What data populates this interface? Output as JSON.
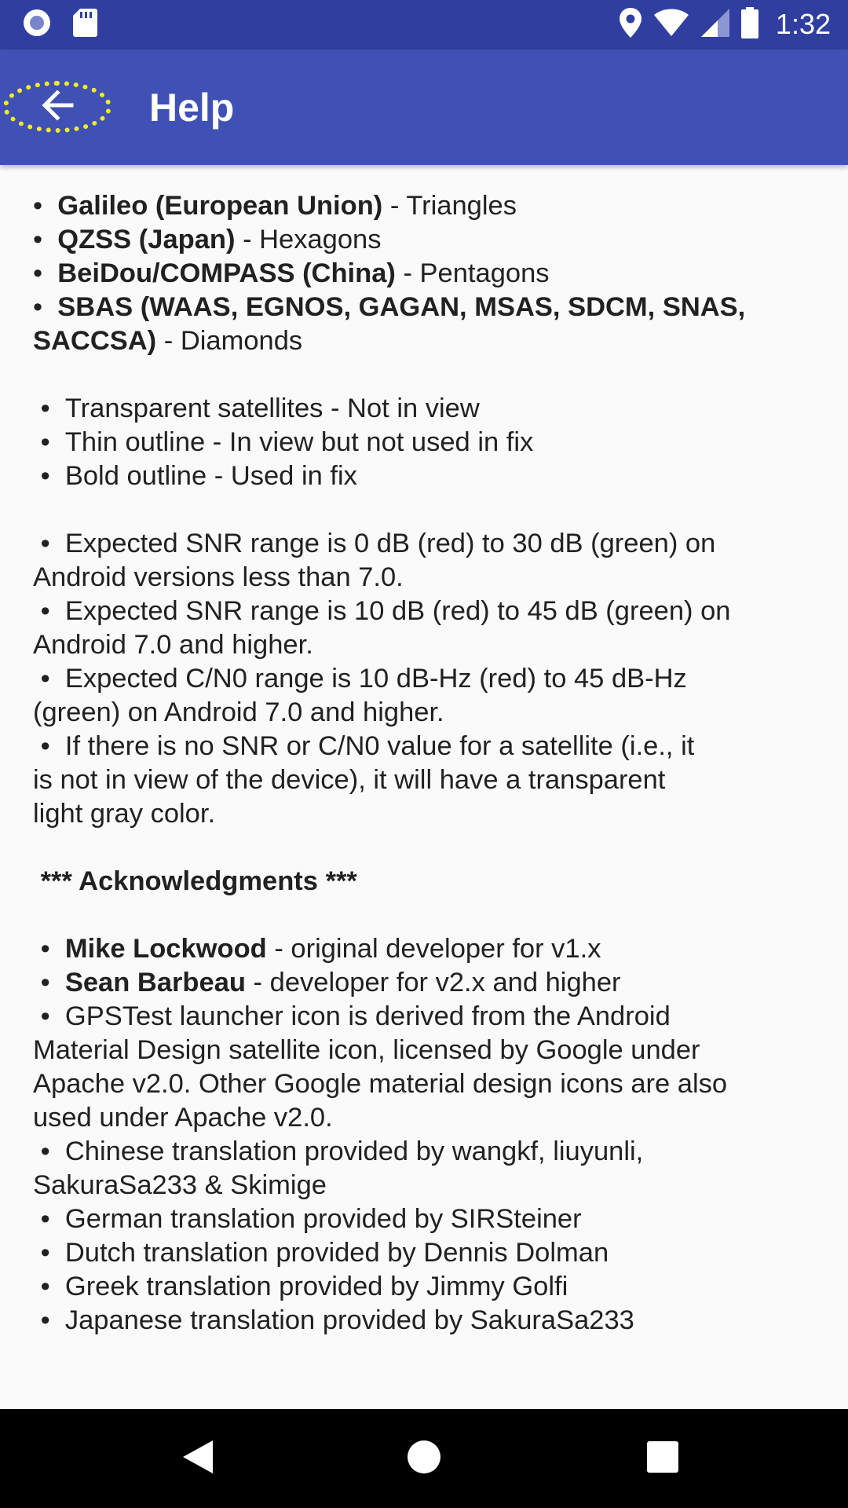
{
  "status_bar": {
    "time": "1:32",
    "left_icons": [
      "record-icon",
      "sd-card-icon"
    ],
    "right_icons": [
      "location-icon",
      "wifi-icon",
      "cell-signal-icon",
      "battery-icon"
    ]
  },
  "app_bar": {
    "title": "Help",
    "back_icon": "arrow-back-icon"
  },
  "bullet": "•",
  "help": {
    "shapes": [
      {
        "name": "Galileo (European Union)",
        "desc": " - Triangles"
      },
      {
        "name": "QZSS (Japan)",
        "desc": " - Hexagons"
      },
      {
        "name": "BeiDou/COMPASS (China)",
        "desc": " - Pentagons"
      }
    ],
    "sbas": {
      "name_line1": "SBAS (WAAS, EGNOS, GAGAN, MSAS, SDCM, SNAS,",
      "name_line2": "SACCSA)",
      "desc": " - Diamonds"
    },
    "outline": [
      "Transparent satellites - Not in view",
      "Thin outline - In view but not used in fix",
      "Bold outline - Used in fix"
    ],
    "signal": [
      {
        "l1": "Expected SNR range is 0 dB (red) to 30 dB (green) on",
        "l2": "Android versions less than 7.0."
      },
      {
        "l1": "Expected SNR range is 10 dB (red) to 45 dB (green) on",
        "l2": "Android 7.0 and higher."
      },
      {
        "l1": "Expected C/N0 range is 10 dB-Hz (red) to 45 dB-Hz",
        "l2": "(green) on Android 7.0 and higher."
      }
    ],
    "no_value": {
      "l1": "If there is no SNR or C/N0 value for a satellite (i.e., it",
      "l2": "is not in view of the device), it will have a transparent",
      "l3": "light gray color."
    },
    "ack_heading": "*** Acknowledgments ***",
    "developers": [
      {
        "name": "Mike Lockwood",
        "desc": " - original developer for v1.x"
      },
      {
        "name": "Sean Barbeau",
        "desc": " - developer for v2.x and higher"
      }
    ],
    "icon_credit": {
      "l1": "GPSTest launcher icon is derived from the Android",
      "l2": "Material Design satellite icon, licensed by Google under",
      "l3": "Apache v2.0. Other Google material design icons are also",
      "l4": "used under Apache v2.0."
    },
    "chinese": {
      "l1": "Chinese translation provided by wangkf, liuyunli,",
      "l2": "SakuraSa233 & Skimige"
    },
    "translations": [
      "German translation provided by SIRSteiner",
      "Dutch translation provided by Dennis Dolman",
      "Greek translation provided by Jimmy Golfi",
      "Japanese translation provided by SakuraSa233"
    ]
  },
  "nav_bar": {
    "icons": [
      "nav-back-icon",
      "nav-home-icon",
      "nav-recents-icon"
    ]
  }
}
